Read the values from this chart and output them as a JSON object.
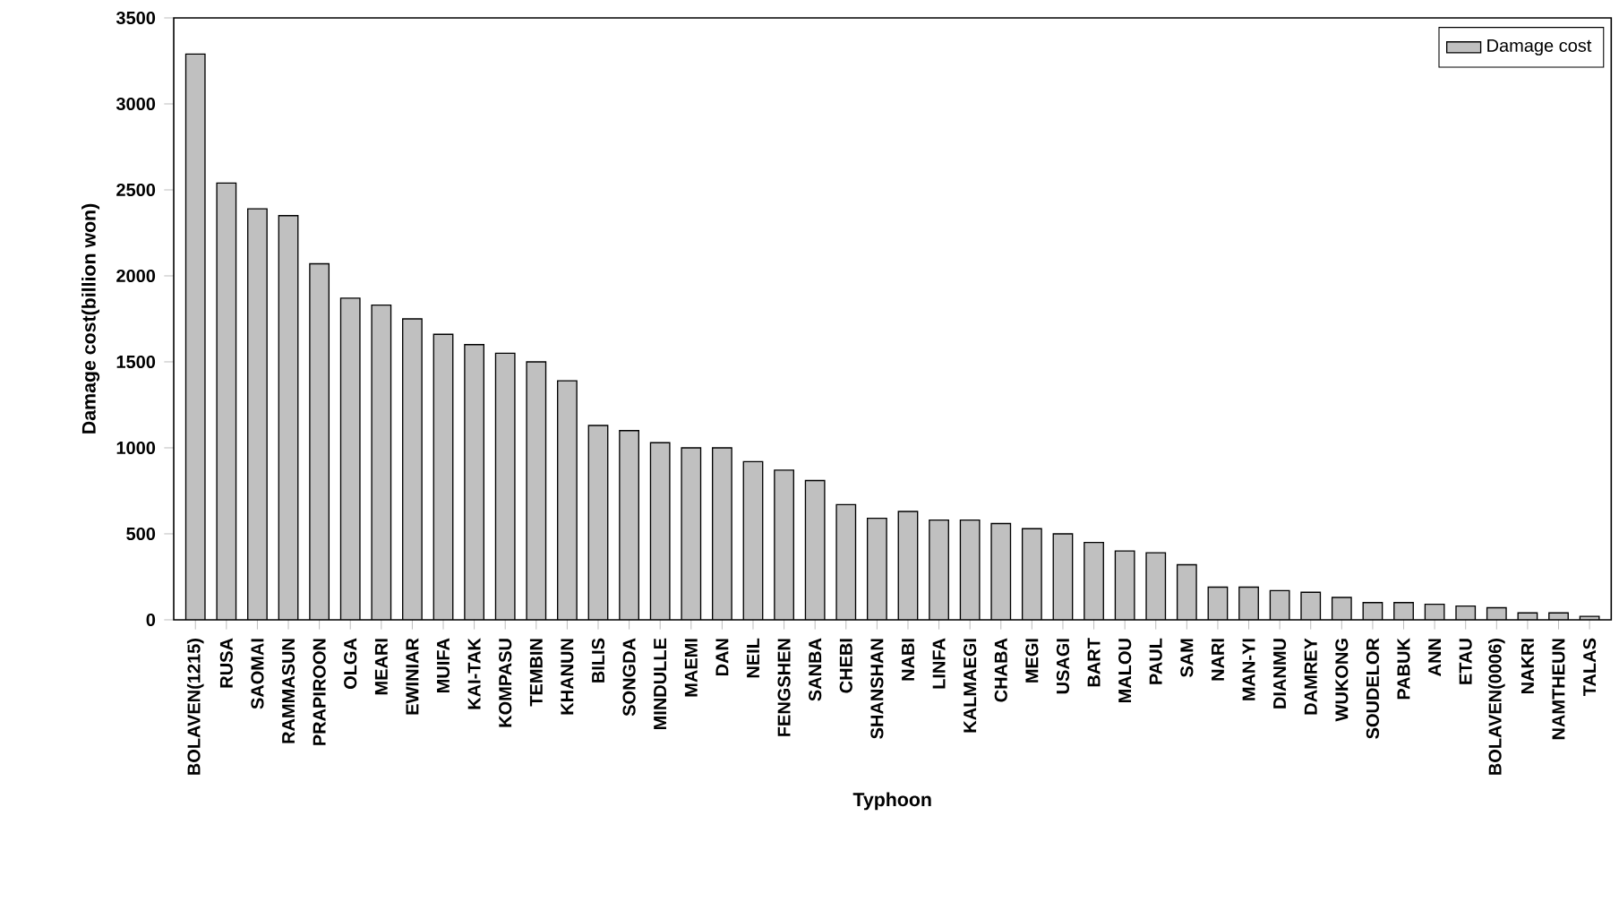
{
  "chart_data": {
    "type": "bar",
    "xlabel": "Typhoon",
    "ylabel": "Damage cost(billion won)",
    "categories": [
      "BOLAVEN(1215)",
      "RUSA",
      "SAOMAI",
      "RAMMASUN",
      "PRAPIROON",
      "OLGA",
      "MEARI",
      "EWINIAR",
      "MUIFA",
      "KAI-TAK",
      "KOMPASU",
      "TEMBIN",
      "KHANUN",
      "BILIS",
      "SONGDA",
      "MINDULLE",
      "MAEMI",
      "DAN",
      "NEIL",
      "FENGSHEN",
      "SANBA",
      "CHEBI",
      "SHANSHAN",
      "NABI",
      "LINFA",
      "KALMAEGI",
      "CHABA",
      "MEGI",
      "USAGI",
      "BART",
      "MALOU",
      "PAUL",
      "SAM",
      "NARI",
      "MAN-YI",
      "DIANMU",
      "DAMREY",
      "WUKONG",
      "SOUDELOR",
      "PABUK",
      "ANN",
      "ETAU",
      "BOLAVEN(0006)",
      "NAKRI",
      "NAMTHEUN",
      "TALAS"
    ],
    "series": [
      {
        "name": "Damage cost",
        "color": "#c0c0c0",
        "values": [
          3290,
          2540,
          2390,
          2350,
          2070,
          1870,
          1830,
          1750,
          1660,
          1600,
          1550,
          1500,
          1390,
          1130,
          1100,
          1030,
          1000,
          1000,
          920,
          870,
          810,
          670,
          590,
          630,
          580,
          580,
          560,
          530,
          500,
          450,
          400,
          390,
          320,
          190,
          190,
          170,
          160,
          130,
          100,
          100,
          90,
          80,
          70,
          40,
          40,
          20
        ]
      }
    ],
    "ylim": [
      0,
      3500
    ],
    "yticks": [
      0,
      500,
      1000,
      1500,
      2000,
      2500,
      3000,
      3500
    ],
    "legend": "top right",
    "grid": false
  }
}
